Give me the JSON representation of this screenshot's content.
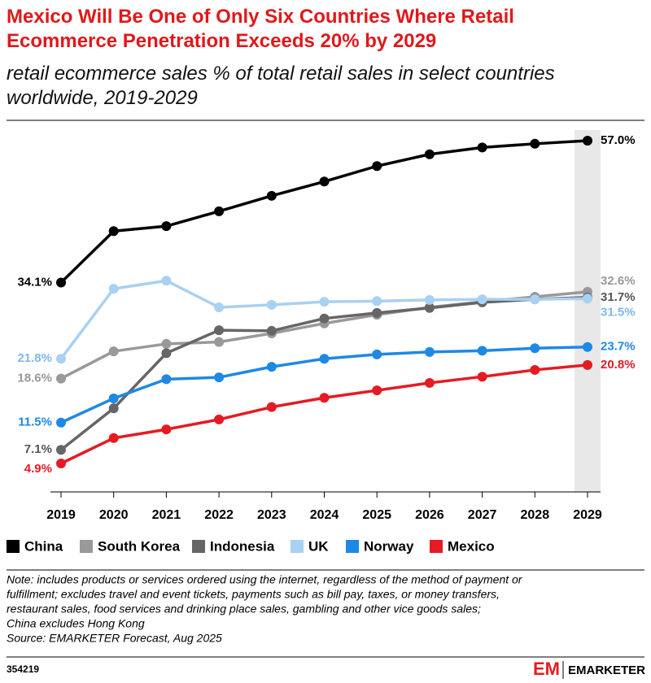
{
  "chart_data": {
    "type": "line",
    "title": "Mexico Will Be One of Only Six Countries Where Retail Ecommerce Penetration Exceeds 20% by 2029",
    "subtitle": "retail ecommerce sales % of total retail sales in select countries worldwide, 2019-2029",
    "categories": [
      "2019",
      "2020",
      "2021",
      "2022",
      "2023",
      "2024",
      "2025",
      "2026",
      "2027",
      "2028",
      "2029"
    ],
    "series": [
      {
        "name": "China",
        "color": "#000000",
        "values": [
          34.1,
          42.4,
          43.2,
          45.6,
          48.1,
          50.4,
          52.9,
          54.8,
          55.9,
          56.5,
          57.0
        ],
        "value_labels": [
          "34.1%",
          null,
          null,
          null,
          null,
          null,
          null,
          null,
          null,
          null,
          "57.0%"
        ]
      },
      {
        "name": "South Korea",
        "color": "#999999",
        "values": [
          18.6,
          23.0,
          24.2,
          24.5,
          25.9,
          27.5,
          28.9,
          30.1,
          31.0,
          31.8,
          32.6
        ],
        "value_labels": [
          "18.6%",
          null,
          null,
          null,
          null,
          null,
          null,
          null,
          null,
          null,
          "32.6%"
        ]
      },
      {
        "name": "Indonesia",
        "color": "#666666",
        "values": [
          7.1,
          13.8,
          22.7,
          26.4,
          26.3,
          28.3,
          29.2,
          30.0,
          30.9,
          31.4,
          31.7
        ],
        "value_labels": [
          "7.1%",
          null,
          null,
          null,
          null,
          null,
          null,
          null,
          null,
          null,
          "31.7%"
        ]
      },
      {
        "name": "UK",
        "color": "#a8d1f2",
        "values": [
          21.8,
          33.1,
          34.4,
          30.1,
          30.5,
          31.0,
          31.1,
          31.3,
          31.4,
          31.4,
          31.5
        ],
        "value_labels": [
          "21.8%",
          null,
          null,
          null,
          null,
          null,
          null,
          null,
          null,
          null,
          "31.5%"
        ]
      },
      {
        "name": "Norway",
        "color": "#1e88e5",
        "values": [
          11.5,
          15.4,
          18.5,
          18.8,
          20.5,
          21.8,
          22.5,
          22.9,
          23.1,
          23.5,
          23.7
        ],
        "value_labels": [
          "11.5%",
          null,
          null,
          null,
          null,
          null,
          null,
          null,
          null,
          null,
          "23.7%"
        ]
      },
      {
        "name": "Mexico",
        "color": "#e41b23",
        "values": [
          4.9,
          9.0,
          10.4,
          12.0,
          14.0,
          15.5,
          16.7,
          17.9,
          18.9,
          20.0,
          20.8
        ],
        "value_labels": [
          "4.9%",
          null,
          null,
          null,
          null,
          null,
          null,
          null,
          null,
          null,
          "20.8%"
        ]
      }
    ],
    "note_lines": [
      "Note: includes products or services ordered using the internet, regardless of the method of payment or",
      "fulfillment; excludes travel and event tickets, payments such as bill pay, taxes, or money transfers,",
      "restaurant sales, food services and drinking place sales, gambling and other vice goods sales;",
      "China excludes Hong Kong",
      "Source: EMARKETER Forecast, Aug 2025"
    ],
    "chart_id": "354219",
    "logo_mark": "EM",
    "logo_text": "EMARKETER"
  }
}
